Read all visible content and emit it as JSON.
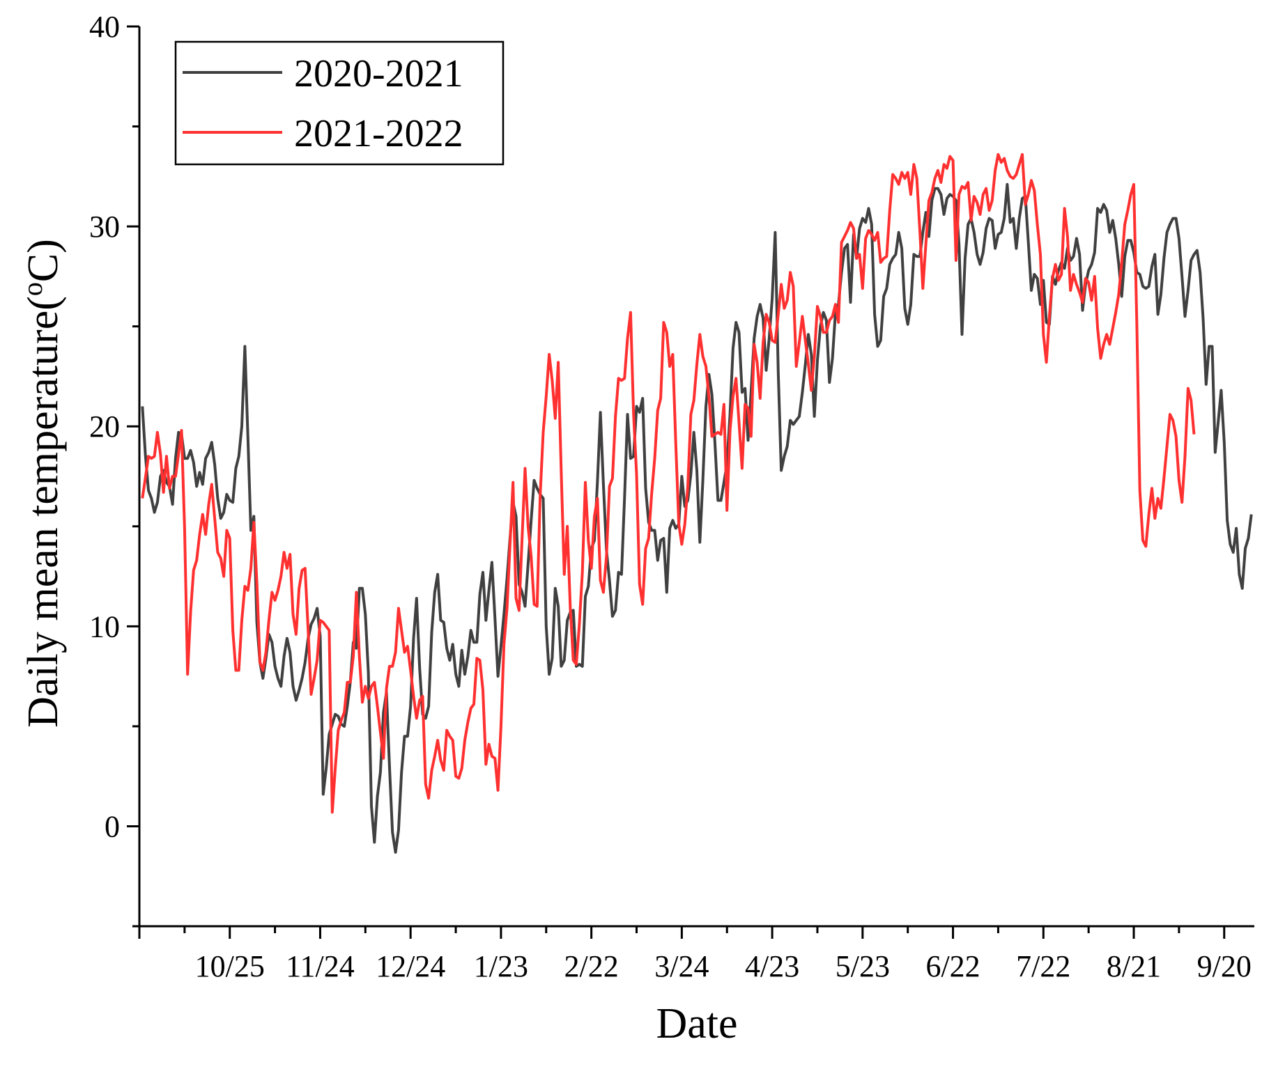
{
  "chart_data": {
    "type": "line",
    "title": "",
    "xlabel": "Date",
    "ylabel": "Daily mean temperature(°C)",
    "ylabel_parts": [
      "Daily mean temperature(",
      "o",
      "C)"
    ],
    "ylim": [
      -5,
      40
    ],
    "yticks": [
      0,
      10,
      20,
      30,
      40
    ],
    "xlim": [
      0,
      370
    ],
    "xticks": [
      {
        "x": 30,
        "label": "10/25"
      },
      {
        "x": 60,
        "label": "11/24"
      },
      {
        "x": 90,
        "label": "12/24"
      },
      {
        "x": 120,
        "label": "1/23"
      },
      {
        "x": 150,
        "label": "2/22"
      },
      {
        "x": 180,
        "label": "3/24"
      },
      {
        "x": 210,
        "label": "4/23"
      },
      {
        "x": 240,
        "label": "5/23"
      },
      {
        "x": 270,
        "label": "6/22"
      },
      {
        "x": 300,
        "label": "7/22"
      },
      {
        "x": 330,
        "label": "8/21"
      },
      {
        "x": 360,
        "label": "9/20"
      }
    ],
    "grid": false,
    "legend_position": "top-left",
    "series": [
      {
        "name": "2020-2021",
        "color": "#404040",
        "x_start": 1,
        "values": [
          21.0,
          18.6,
          16.8,
          16.4,
          15.7,
          16.2,
          17.5,
          17.8,
          17.2,
          17.0,
          16.1,
          18.4,
          19.7,
          19.6,
          18.4,
          18.4,
          18.8,
          18.2,
          17.0,
          17.7,
          17.1,
          18.4,
          18.7,
          19.2,
          18.1,
          16.4,
          15.4,
          15.7,
          16.6,
          16.3,
          16.2,
          17.9,
          18.5,
          20.0,
          24.0,
          19.5,
          14.8,
          15.5,
          10.2,
          8.2,
          7.4,
          8.4,
          9.6,
          9.2,
          8.0,
          7.4,
          7.0,
          8.5,
          9.4,
          8.7,
          7.0,
          6.3,
          6.8,
          7.4,
          8.2,
          9.4,
          10.1,
          10.4,
          10.9,
          9.5,
          1.6,
          2.9,
          4.6,
          5.1,
          5.6,
          5.5,
          5.1,
          5.0,
          6.0,
          7.2,
          9.2,
          8.9,
          11.9,
          11.9,
          10.6,
          7.7,
          1.0,
          -0.8,
          1.5,
          2.7,
          5.7,
          6.7,
          3.0,
          -0.3,
          -1.3,
          -0.2,
          2.7,
          4.5,
          4.5,
          6.0,
          9.4,
          11.4,
          7.9,
          5.6,
          5.4,
          6.0,
          9.7,
          11.7,
          12.6,
          10.3,
          10.2,
          8.9,
          8.3,
          9.1,
          7.6,
          7.0,
          8.8,
          7.6,
          8.5,
          9.8,
          9.2,
          9.2,
          11.6,
          12.7,
          10.3,
          11.8,
          13.2,
          10.4,
          7.5,
          9.0,
          10.6,
          12.4,
          14.4,
          16.2,
          15.5,
          12.1,
          11.7,
          11.0,
          13.1,
          15.3,
          17.3,
          16.9,
          16.6,
          16.4,
          10.0,
          7.6,
          8.4,
          11.9,
          11.0,
          8.0,
          8.3,
          10.3,
          10.7,
          10.8,
          8.0,
          8.1,
          8.0,
          11.5,
          12.0,
          13.9,
          14.3,
          17.2,
          20.7,
          17.1,
          13.8,
          12.3,
          10.5,
          10.8,
          12.7,
          12.6,
          16.4,
          20.6,
          18.4,
          18.5,
          21.0,
          20.7,
          21.4,
          16.9,
          15.2,
          14.8,
          14.8,
          13.3,
          14.3,
          14.4,
          11.7,
          14.9,
          15.3,
          14.9,
          15.1,
          17.5,
          16.0,
          16.3,
          17.6,
          19.7,
          17.8,
          14.2,
          17.3,
          21.0,
          22.6,
          21.6,
          19.2,
          16.3,
          16.3,
          17.2,
          18.1,
          20.6,
          23.9,
          25.2,
          24.7,
          21.7,
          21.9,
          19.3,
          21.7,
          24.4,
          25.5,
          26.1,
          25.4,
          22.8,
          24.4,
          26.4,
          29.7,
          22.7,
          17.8,
          18.5,
          19.0,
          20.3,
          20.1,
          20.3,
          20.5,
          21.7,
          23.1,
          24.6,
          23.6,
          20.5,
          23.3,
          25.0,
          25.7,
          25.3,
          22.2,
          23.4,
          25.7,
          26.1,
          27.7,
          28.9,
          29.1,
          26.2,
          29.6,
          28.4,
          29.9,
          30.4,
          30.2,
          30.9,
          30.1,
          25.6,
          24.0,
          24.3,
          26.5,
          26.9,
          28.1,
          28.4,
          28.6,
          29.7,
          28.9,
          25.9,
          25.1,
          26.1,
          28.6,
          28.5,
          28.5,
          29.7,
          30.7,
          29.5,
          31.3,
          31.9,
          31.9,
          31.6,
          30.6,
          31.4,
          31.6,
          31.5,
          31.3,
          29.1,
          24.6,
          28.4,
          30.1,
          30.4,
          29.7,
          28.6,
          28.1,
          28.7,
          29.9,
          30.4,
          30.3,
          28.9,
          29.6,
          29.7,
          30.4,
          32.1,
          30.2,
          30.4,
          28.9,
          30.4,
          31.4,
          31.5,
          29.2,
          26.8,
          27.6,
          27.4,
          26.1,
          27.3,
          25.2,
          25.1,
          27.5,
          27.1,
          27.8,
          28.2,
          27.9,
          28.9,
          28.3,
          28.5,
          29.4,
          28.6,
          25.8,
          27.1,
          27.8,
          28.1,
          28.7,
          30.9,
          30.7,
          31.1,
          30.8,
          29.7,
          30.3,
          29.4,
          28.1,
          26.5,
          28.5,
          29.3,
          29.3,
          28.7,
          27.7,
          27.6,
          27.0,
          26.9,
          27.0,
          28.0,
          28.6,
          25.6,
          26.6,
          28.4,
          29.7,
          30.1,
          30.4,
          30.4,
          29.4,
          27.5,
          25.5,
          26.8,
          28.3,
          28.6,
          28.8,
          27.7,
          25.4,
          22.1,
          24.0,
          24.0,
          18.7,
          20.2,
          21.8,
          19.2,
          15.3,
          14.1,
          13.7,
          14.9,
          12.6,
          11.9,
          13.9,
          14.4,
          15.6
        ]
      },
      {
        "name": "2021-2022",
        "color": "#ff3030",
        "x_start": 1,
        "values": [
          16.4,
          17.4,
          18.5,
          18.4,
          18.5,
          19.7,
          18.6,
          16.7,
          18.5,
          16.9,
          17.5,
          17.5,
          18.6,
          19.8,
          14.9,
          7.6,
          10.7,
          12.8,
          13.3,
          14.6,
          15.6,
          14.6,
          16.1,
          17.1,
          15.4,
          13.7,
          13.4,
          12.5,
          14.8,
          14.4,
          9.8,
          7.8,
          7.8,
          10.3,
          12.0,
          11.8,
          12.9,
          15.2,
          12.2,
          8.2,
          7.8,
          8.7,
          10.3,
          11.7,
          11.3,
          11.8,
          12.5,
          13.7,
          12.9,
          13.6,
          10.6,
          9.6,
          11.9,
          12.8,
          12.9,
          9.8,
          6.6,
          7.4,
          8.3,
          10.3,
          10.2,
          10.0,
          9.8,
          0.7,
          2.9,
          4.8,
          5.3,
          5.7,
          7.2,
          7.2,
          8.5,
          11.7,
          8.5,
          6.2,
          7.0,
          6.4,
          7.0,
          7.2,
          6.0,
          4.7,
          3.4,
          6.9,
          8.0,
          8.0,
          8.7,
          10.9,
          9.8,
          8.7,
          9.0,
          7.8,
          6.5,
          5.4,
          6.3,
          6.5,
          2.1,
          1.4,
          2.8,
          3.5,
          4.3,
          3.3,
          2.8,
          4.8,
          4.5,
          4.3,
          2.5,
          2.4,
          2.9,
          4.3,
          5.2,
          5.9,
          6.1,
          8.4,
          8.3,
          6.8,
          3.1,
          4.1,
          3.5,
          3.4,
          1.8,
          5.0,
          9.1,
          10.9,
          14.1,
          17.2,
          11.4,
          10.8,
          14.4,
          17.9,
          15.0,
          13.5,
          11.1,
          11.0,
          16.5,
          19.7,
          21.5,
          23.6,
          22.3,
          20.4,
          23.2,
          17.7,
          12.6,
          15.0,
          10.9,
          8.3,
          8.1,
          10.1,
          12.7,
          17.2,
          14.3,
          12.9,
          15.5,
          16.4,
          12.3,
          11.7,
          13.5,
          17.0,
          17.4,
          20.5,
          22.4,
          22.3,
          22.4,
          24.4,
          25.7,
          20.6,
          17.6,
          12.1,
          11.1,
          13.9,
          14.4,
          16.6,
          18.4,
          20.8,
          21.4,
          25.2,
          24.7,
          23.0,
          23.6,
          19.2,
          15.1,
          14.1,
          15.1,
          17.0,
          20.6,
          21.3,
          23.1,
          24.6,
          23.5,
          23.0,
          21.5,
          19.5,
          19.6,
          19.7,
          19.6,
          21.1,
          15.8,
          19.8,
          21.5,
          22.4,
          20.2,
          17.9,
          21.1,
          20.9,
          19.5,
          24.1,
          23.2,
          21.4,
          24.2,
          25.6,
          25.2,
          24.3,
          24.2,
          25.6,
          27.1,
          25.9,
          26.3,
          27.7,
          27.0,
          23.0,
          24.2,
          25.5,
          24.3,
          23.1,
          21.8,
          23.5,
          26.0,
          25.5,
          24.7,
          24.7,
          25.3,
          25.5,
          26.1,
          25.2,
          29.2,
          29.5,
          29.8,
          30.2,
          29.9,
          28.4,
          28.6,
          26.9,
          29.4,
          29.8,
          29.6,
          29.3,
          29.7,
          28.2,
          28.4,
          28.5,
          30.8,
          32.6,
          32.4,
          32.1,
          32.7,
          32.4,
          32.7,
          31.6,
          33.1,
          32.4,
          29.8,
          26.9,
          29.1,
          31.3,
          31.7,
          32.4,
          32.8,
          32.2,
          33.1,
          32.9,
          33.5,
          33.3,
          28.3,
          31.6,
          32.0,
          31.9,
          32.2,
          30.3,
          31.5,
          31.2,
          30.6,
          31.6,
          31.9,
          30.8,
          31.3,
          32.8,
          33.6,
          33.2,
          33.4,
          32.8,
          32.5,
          32.4,
          32.6,
          33.1,
          33.6,
          31.1,
          31.6,
          32.3,
          31.8,
          30.1,
          28.6,
          24.6,
          23.2,
          25.5,
          27.4,
          28.1,
          27.3,
          27.6,
          30.9,
          29.5,
          26.8,
          27.6,
          27.1,
          26.7,
          26.2,
          27.4,
          27.2,
          26.3,
          27.5,
          24.9,
          23.4,
          24.1,
          24.6,
          24.1,
          24.9,
          25.7,
          26.6,
          28.2,
          30.1,
          30.8,
          31.6,
          32.1,
          25.1,
          16.8,
          14.3,
          14.0,
          15.6,
          16.9,
          15.4,
          16.4,
          15.9,
          17.4,
          19.0,
          20.6,
          20.3,
          19.5,
          17.3,
          16.2,
          18.5,
          21.9,
          21.3,
          19.6
        ]
      }
    ]
  }
}
